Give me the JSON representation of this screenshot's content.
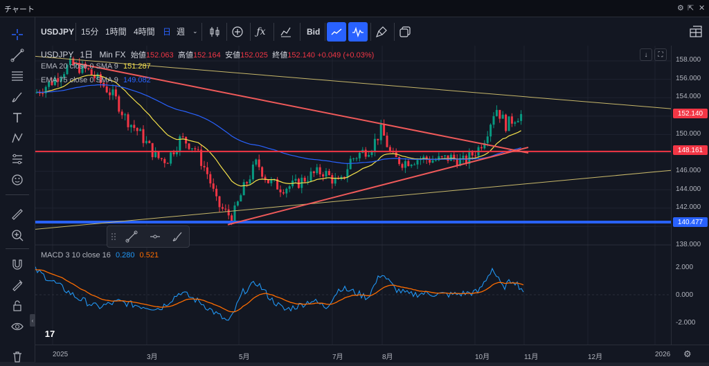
{
  "window": {
    "title": "チャート"
  },
  "toolbar": {
    "symbol": "USDJPY",
    "intervals": [
      "15分",
      "1時間",
      "4時間",
      "日",
      "週"
    ],
    "active_interval": "日",
    "bid_label": "Bid"
  },
  "legend": {
    "symbol": "USDJPY",
    "interval": "1日",
    "source": "Min FX",
    "open_label": "始値",
    "open": "152.063",
    "high_label": "高値",
    "high": "152.164",
    "low_label": "安値",
    "low": "152.025",
    "close_label": "終値",
    "close": "152.140",
    "change": "+0.049 (+0.03%)",
    "ema20_label": "EMA 20 close 0 SMA 9",
    "ema20_value": "151.287",
    "ema75_label": "EMA 75 close 0 SMA 9",
    "ema75_value": "149.082",
    "macd_label": "MACD 3 10 close 16",
    "macd_value1": "0.280",
    "macd_value2": "0.521"
  },
  "price_axis": [
    "158.000",
    "156.000",
    "154.000",
    "152.000",
    "150.000",
    "148.000",
    "146.000",
    "144.000",
    "142.000",
    "140.000",
    "138.000"
  ],
  "price_labels": {
    "last": "152.140",
    "level1": "148.161",
    "level2": "140.477"
  },
  "macd_axis": [
    "2.000",
    "0.000",
    "-2.000"
  ],
  "time_axis": [
    "2025",
    "3月",
    "5月",
    "7月",
    "8月",
    "10月",
    "11月",
    "12月",
    "2026"
  ],
  "colors": {
    "up": "#089981",
    "down": "#f23645",
    "ema20": "#f7e34b",
    "ema75": "#2962ff",
    "trend": "#f05a5a",
    "hline_red": "#f23645",
    "hline_blue": "#2962ff",
    "macd": "#2196f3",
    "signal": "#ff6d00",
    "accent": "#2962ff"
  },
  "icons": {
    "left": [
      "crosshair-icon",
      "trendline-icon",
      "fib-icon",
      "brush-icon",
      "text-icon",
      "pattern-icon",
      "forecast-icon",
      "emoji-icon",
      "ruler-icon",
      "zoom-in-icon",
      "magnet-icon",
      "lock-draw-icon",
      "unlock-icon",
      "eye-icon",
      "trash-icon"
    ],
    "top": [
      "candle-type-icon",
      "indicator-add-icon",
      "fx-icon",
      "compare-icon",
      "line-tool-icon",
      "wave-tool-icon",
      "brush-clean-icon",
      "copy-layout-icon",
      "layout-icon"
    ]
  }
}
